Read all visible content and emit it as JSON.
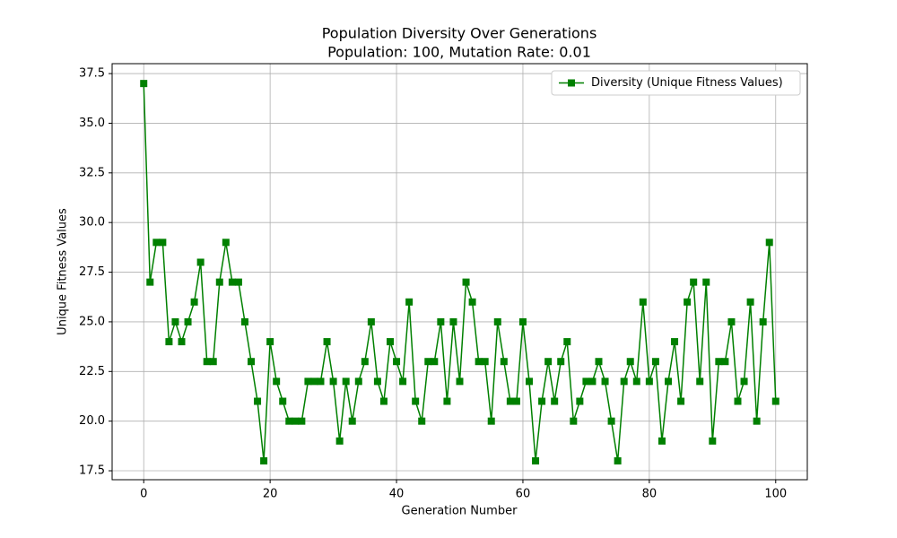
{
  "chart_data": {
    "type": "line",
    "title": "Population Diversity Over Generations",
    "subtitle": "Population: 100, Mutation Rate: 0.01",
    "x_label": "Generation Number",
    "y_label": "Unique Fitness Values",
    "x": [
      0,
      1,
      2,
      3,
      4,
      5,
      6,
      7,
      8,
      9,
      10,
      11,
      12,
      13,
      14,
      15,
      16,
      17,
      18,
      19,
      20,
      21,
      22,
      23,
      24,
      25,
      26,
      27,
      28,
      29,
      30,
      31,
      32,
      33,
      34,
      35,
      36,
      37,
      38,
      39,
      40,
      41,
      42,
      43,
      44,
      45,
      46,
      47,
      48,
      49,
      50,
      51,
      52,
      53,
      54,
      55,
      56,
      57,
      58,
      59,
      60,
      61,
      62,
      63,
      64,
      65,
      66,
      67,
      68,
      69,
      70,
      71,
      72,
      73,
      74,
      75,
      76,
      77,
      78,
      79,
      80,
      81,
      82,
      83,
      84,
      85,
      86,
      87,
      88,
      89,
      90,
      91,
      92,
      93,
      94,
      95,
      96,
      97,
      98,
      99,
      100
    ],
    "series": [
      {
        "name": "Diversity (Unique Fitness Values)",
        "color": "#008000",
        "values": [
          37,
          27,
          29,
          29,
          24,
          25,
          24,
          25,
          26,
          28,
          23,
          23,
          27,
          29,
          27,
          27,
          25,
          23,
          21,
          18,
          24,
          22,
          21,
          20,
          20,
          20,
          22,
          22,
          22,
          24,
          22,
          19,
          22,
          20,
          22,
          23,
          25,
          22,
          21,
          24,
          23,
          22,
          26,
          21,
          20,
          23,
          23,
          25,
          21,
          25,
          22,
          27,
          26,
          23,
          23,
          20,
          25,
          23,
          21,
          21,
          25,
          22,
          18,
          21,
          23,
          21,
          23,
          24,
          20,
          21,
          22,
          22,
          23,
          22,
          20,
          18,
          22,
          23,
          22,
          26,
          22,
          23,
          19,
          22,
          24,
          21,
          26,
          27,
          22,
          27,
          19,
          23,
          23,
          25,
          21,
          22,
          26,
          20,
          25,
          29,
          21
        ]
      }
    ],
    "xlim": [
      -5,
      105
    ],
    "ylim": [
      17.05,
      38
    ],
    "xticks": [
      0,
      20,
      40,
      60,
      80,
      100
    ],
    "yticks": [
      17.5,
      {
        "value": 20,
        "label": "20.0"
      },
      22.5,
      {
        "value": 25,
        "label": "25.0"
      },
      27.5,
      {
        "value": 30,
        "label": "30.0"
      },
      32.5,
      {
        "value": 35,
        "label": "35.0"
      },
      37.5
    ],
    "grid": true,
    "legend": "upper right",
    "marker": "square"
  }
}
